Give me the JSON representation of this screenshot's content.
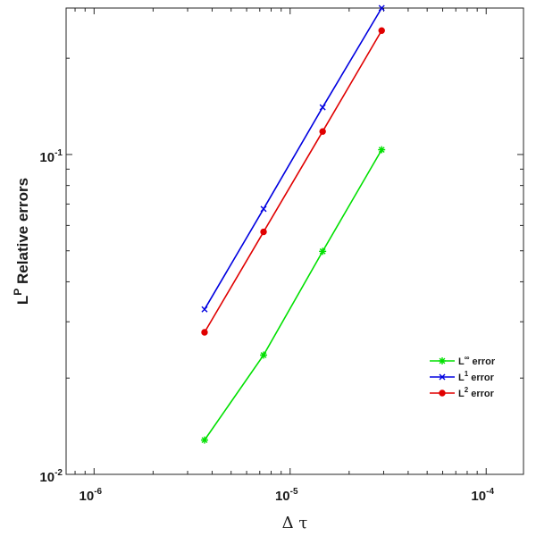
{
  "chart_data": {
    "type": "line",
    "xscale": "log",
    "yscale": "log",
    "xlim": [
      7.2e-07,
      0.000155
    ],
    "ylim": [
      0.01,
      0.287
    ],
    "xticks": [
      {
        "value": 1e-06,
        "base": "10",
        "exp": "-6"
      },
      {
        "value": 1e-05,
        "base": "10",
        "exp": "-5"
      },
      {
        "value": 0.0001,
        "base": "10",
        "exp": "-4"
      }
    ],
    "yticks": [
      {
        "value": 0.01,
        "base": "10",
        "exp": "-2"
      },
      {
        "value": 0.1,
        "base": "10",
        "exp": "-1"
      }
    ],
    "xlabel": "Δ τ",
    "ylabel": {
      "base": "L",
      "sup": "P",
      "rest": " Relative errors"
    },
    "grid": false,
    "legend_position": "lower-right",
    "series": [
      {
        "name": {
          "base": "L",
          "sup": "∞",
          "rest": " error"
        },
        "color": "#00e000",
        "marker": "asterisk",
        "x": [
          3.66e-06,
          7.32e-06,
          1.465e-05,
          2.93e-05
        ],
        "y": [
          0.0128,
          0.0236,
          0.0498,
          0.1035
        ]
      },
      {
        "name": {
          "base": "L",
          "sup": "1",
          "rest": " error"
        },
        "color": "#0000e0",
        "marker": "x",
        "x": [
          3.66e-06,
          7.32e-06,
          1.465e-05,
          2.93e-05
        ],
        "y": [
          0.0328,
          0.0676,
          0.1405,
          0.287
        ]
      },
      {
        "name": {
          "base": "L",
          "sup": "2",
          "rest": " error"
        },
        "color": "#e00000",
        "marker": "dot",
        "x": [
          3.66e-06,
          7.32e-06,
          1.465e-05,
          2.93e-05
        ],
        "y": [
          0.0278,
          0.0573,
          0.118,
          0.244
        ]
      }
    ]
  }
}
